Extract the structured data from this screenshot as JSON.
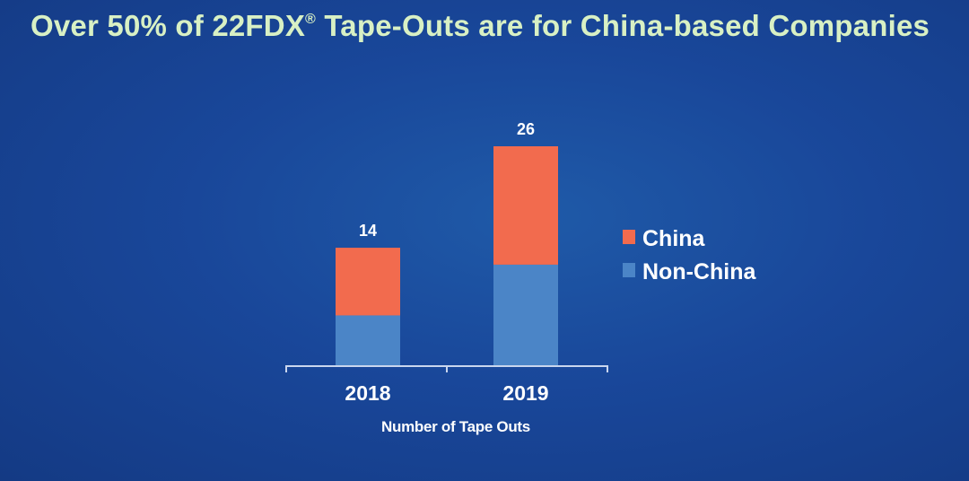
{
  "title": {
    "text_main": "Over 50% of 22FDX",
    "registered_mark": "®",
    "text_rest": " Tape-Outs are for China-based Companies"
  },
  "colors": {
    "china": "#f26b4e",
    "non_china": "#4b85c7",
    "axis": "#c9d6ee",
    "text": "#ffffff",
    "title": "#d8f0c4"
  },
  "chart_data": {
    "type": "bar",
    "stacked": true,
    "categories": [
      "2018",
      "2019"
    ],
    "series": [
      {
        "name": "Non-China",
        "values": [
          6,
          12
        ]
      },
      {
        "name": "China",
        "values": [
          8,
          14
        ]
      }
    ],
    "totals": [
      14,
      26
    ],
    "xlabel": "Number of Tape Outs",
    "ylabel": "",
    "ylim": [
      0,
      26
    ],
    "grid": false,
    "legend_position": "right"
  }
}
